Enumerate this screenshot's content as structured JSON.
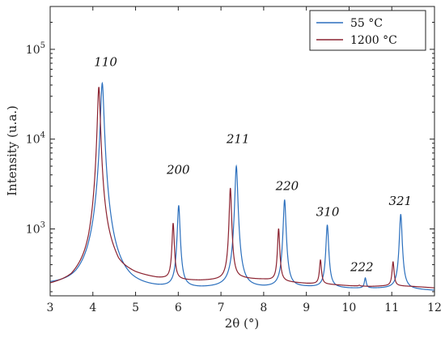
{
  "chart_data": {
    "type": "line",
    "xlabel": "2θ (°)",
    "ylabel": "Intensity (u.a.)",
    "xlim": [
      3,
      12
    ],
    "ylim": [
      180,
      300000
    ],
    "yscale": "log",
    "x_ticks": [
      "3",
      "4",
      "5",
      "6",
      "7",
      "8",
      "9",
      "10",
      "11",
      "12"
    ],
    "y_tick_labels": [
      {
        "base": "10",
        "exp": "3",
        "value": 1000
      },
      {
        "base": "10",
        "exp": "4",
        "value": 10000
      },
      {
        "base": "10",
        "exp": "5",
        "value": 100000
      }
    ],
    "grid": false,
    "legend_position": "top-right",
    "series": [
      {
        "name": "55 °C",
        "color": "#2b6fbd",
        "baseline": [
          [
            3,
            225
          ],
          [
            3.6,
            215
          ],
          [
            4.0,
            230
          ],
          [
            4.9,
            205
          ],
          [
            5.5,
            205
          ],
          [
            6.5,
            210
          ],
          [
            7.0,
            215
          ],
          [
            8.0,
            215
          ],
          [
            8.4,
            218
          ],
          [
            9.0,
            220
          ],
          [
            10.0,
            215
          ],
          [
            11.0,
            215
          ],
          [
            12.0,
            205
          ]
        ],
        "peaks": [
          {
            "x": 4.22,
            "height": 42000,
            "width": 0.035
          },
          {
            "x": 6.01,
            "height": 1800,
            "width": 0.03
          },
          {
            "x": 7.36,
            "height": 5000,
            "width": 0.03
          },
          {
            "x": 8.49,
            "height": 2100,
            "width": 0.03
          },
          {
            "x": 9.49,
            "height": 1100,
            "width": 0.03
          },
          {
            "x": 10.38,
            "height": 280,
            "width": 0.025
          },
          {
            "x": 11.21,
            "height": 1450,
            "width": 0.03
          }
        ]
      },
      {
        "name": "1200 °C",
        "color": "#8b2230",
        "baseline": [
          [
            3,
            225
          ],
          [
            3.5,
            240
          ],
          [
            3.9,
            300
          ],
          [
            4.1,
            450
          ],
          [
            4.3,
            460
          ],
          [
            4.6,
            320
          ],
          [
            5.0,
            290
          ],
          [
            5.5,
            270
          ],
          [
            6.0,
            262
          ],
          [
            6.5,
            260
          ],
          [
            7.0,
            265
          ],
          [
            7.5,
            275
          ],
          [
            8.0,
            270
          ],
          [
            8.5,
            255
          ],
          [
            9.0,
            245
          ],
          [
            9.5,
            240
          ],
          [
            10.0,
            232
          ],
          [
            10.5,
            228
          ],
          [
            11.0,
            232
          ],
          [
            11.5,
            228
          ],
          [
            12.0,
            220
          ]
        ],
        "peaks": [
          {
            "x": 4.14,
            "height": 38000,
            "width": 0.03
          },
          {
            "x": 5.88,
            "height": 1150,
            "width": 0.025
          },
          {
            "x": 7.22,
            "height": 2850,
            "width": 0.025
          },
          {
            "x": 8.35,
            "height": 1000,
            "width": 0.025
          },
          {
            "x": 9.33,
            "height": 450,
            "width": 0.025
          },
          {
            "x": 10.24,
            "height": 235,
            "width": 0.02
          },
          {
            "x": 11.03,
            "height": 430,
            "width": 0.025
          }
        ]
      }
    ],
    "annotations": [
      {
        "text": "110",
        "x": 4.3,
        "y": 65000
      },
      {
        "text": "200",
        "x": 6.0,
        "y": 4100
      },
      {
        "text": "211",
        "x": 7.4,
        "y": 9000
      },
      {
        "text": "220",
        "x": 8.55,
        "y": 2700
      },
      {
        "text": "310",
        "x": 9.5,
        "y": 1400
      },
      {
        "text": "222",
        "x": 10.3,
        "y": 340
      },
      {
        "text": "321",
        "x": 11.2,
        "y": 1850
      }
    ]
  }
}
